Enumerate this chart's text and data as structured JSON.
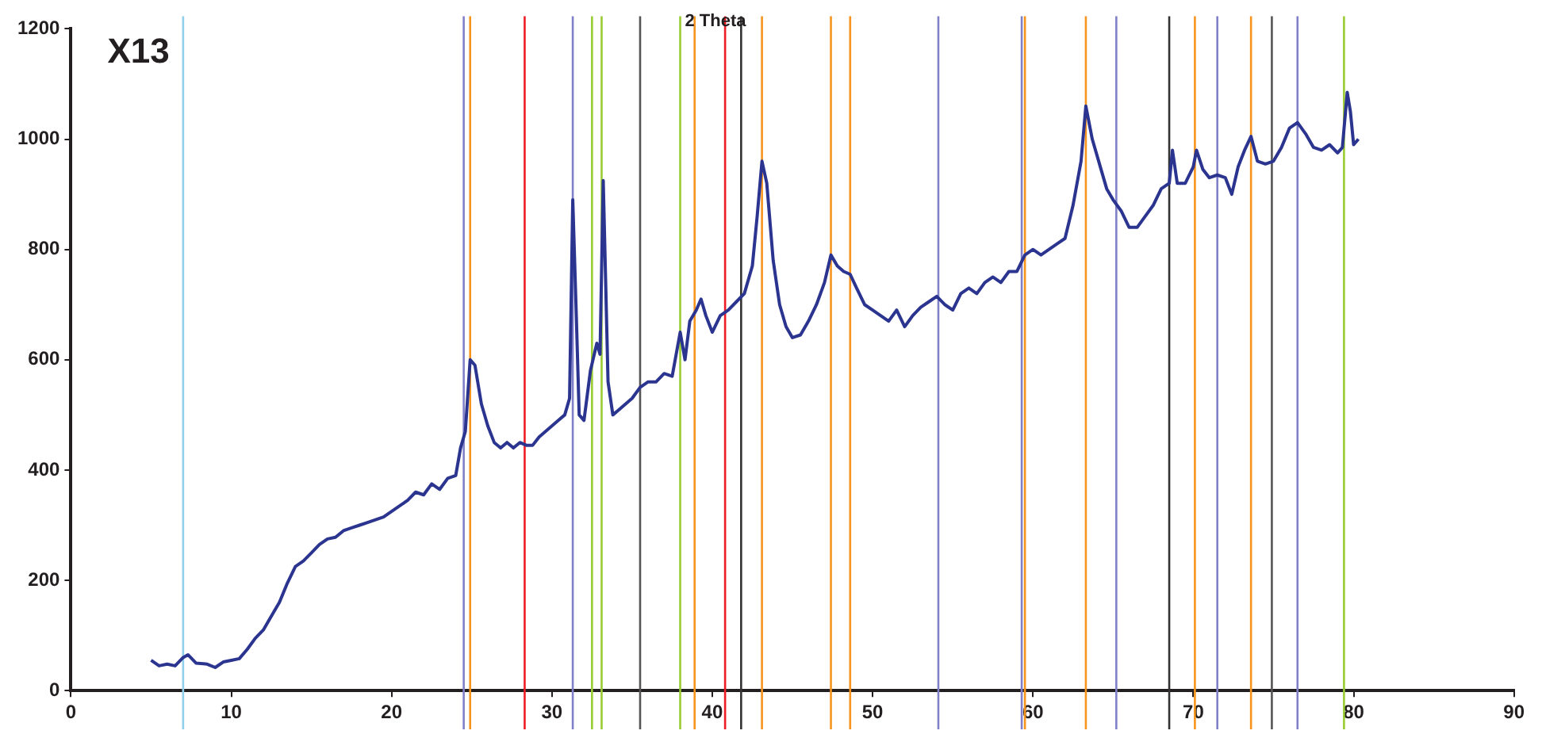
{
  "chart_data": {
    "type": "line",
    "title": "X13",
    "xlabel": "2 Theta",
    "xlim": [
      0,
      90
    ],
    "xticks": [
      0,
      10,
      20,
      30,
      40,
      50,
      60,
      70,
      80,
      90
    ],
    "ylim": [
      0,
      1200
    ],
    "yticks": [
      0,
      200,
      400,
      600,
      800,
      1000,
      1200
    ],
    "marker": "none",
    "line_style": "solid",
    "series": [
      {
        "color": "#2b3590",
        "x": [
          5,
          5.5,
          6,
          6.5,
          7,
          7.3,
          7.8,
          8.5,
          9,
          9.5,
          10,
          10.5,
          11,
          11.5,
          12,
          12.5,
          13,
          13.5,
          14,
          14.5,
          15,
          15.5,
          16,
          16.5,
          17,
          17.5,
          18,
          18.5,
          19,
          19.5,
          20,
          20.5,
          21,
          21.5,
          22,
          22.5,
          23,
          23.5,
          24,
          24.3,
          24.6,
          24.9,
          25.2,
          25.6,
          26,
          26.4,
          26.8,
          27.2,
          27.6,
          28,
          28.4,
          28.8,
          29.2,
          29.6,
          30,
          30.4,
          30.8,
          31.1,
          31.3,
          31.5,
          31.7,
          32,
          32.4,
          32.8,
          33,
          33.2,
          33.5,
          33.8,
          34.2,
          34.6,
          35,
          35.5,
          36,
          36.5,
          37,
          37.5,
          38,
          38.3,
          38.6,
          39,
          39.3,
          39.6,
          40,
          40.5,
          41,
          41.5,
          42,
          42.5,
          42.8,
          43.1,
          43.4,
          43.8,
          44.2,
          44.6,
          45,
          45.5,
          46,
          46.5,
          47,
          47.4,
          47.8,
          48.2,
          48.6,
          49,
          49.5,
          50,
          50.5,
          51,
          51.5,
          52,
          52.5,
          53,
          53.5,
          54,
          54.5,
          55,
          55.5,
          56,
          56.5,
          57,
          57.5,
          58,
          58.5,
          59,
          59.5,
          60,
          60.5,
          61,
          61.5,
          62,
          62.5,
          63,
          63.3,
          63.7,
          64.2,
          64.6,
          65,
          65.5,
          66,
          66.5,
          67,
          67.5,
          68,
          68.5,
          68.7,
          69,
          69.5,
          70,
          70.2,
          70.6,
          71,
          71.5,
          72,
          72.4,
          72.8,
          73.2,
          73.6,
          74,
          74.5,
          75,
          75.5,
          76,
          76.5,
          77,
          77.5,
          78,
          78.5,
          79,
          79.3,
          79.6,
          79.8,
          80,
          80.3
        ],
        "values": [
          55,
          45,
          48,
          45,
          60,
          65,
          50,
          48,
          42,
          52,
          55,
          58,
          75,
          95,
          110,
          135,
          160,
          195,
          225,
          235,
          250,
          265,
          275,
          278,
          290,
          295,
          300,
          305,
          310,
          315,
          325,
          335,
          345,
          360,
          355,
          375,
          365,
          385,
          390,
          440,
          470,
          600,
          590,
          520,
          480,
          450,
          440,
          450,
          440,
          450,
          445,
          445,
          460,
          470,
          480,
          490,
          500,
          530,
          890,
          700,
          500,
          490,
          580,
          630,
          610,
          925,
          560,
          500,
          510,
          520,
          530,
          550,
          560,
          560,
          575,
          570,
          650,
          600,
          670,
          690,
          710,
          680,
          650,
          680,
          690,
          705,
          720,
          770,
          860,
          960,
          920,
          780,
          700,
          660,
          640,
          645,
          670,
          700,
          740,
          790,
          770,
          760,
          755,
          730,
          700,
          690,
          680,
          670,
          690,
          660,
          680,
          695,
          705,
          715,
          700,
          690,
          720,
          730,
          720,
          740,
          750,
          740,
          760,
          760,
          790,
          800,
          790,
          800,
          810,
          820,
          880,
          960,
          1060,
          1000,
          950,
          910,
          890,
          870,
          840,
          840,
          860,
          880,
          910,
          920,
          980,
          920,
          920,
          950,
          980,
          945,
          930,
          935,
          930,
          900,
          950,
          980,
          1005,
          960,
          955,
          960,
          985,
          1020,
          1030,
          1010,
          985,
          980,
          990,
          975,
          985,
          1085,
          1050,
          990,
          1000
        ]
      }
    ],
    "ref_lines": [
      {
        "axis": "x",
        "value": 7.0,
        "color": "#8fd0ec"
      },
      {
        "axis": "x",
        "value": 24.5,
        "color": "#8080c8"
      },
      {
        "axis": "x",
        "value": 24.9,
        "color": "#f7941d"
      },
      {
        "axis": "x",
        "value": 28.3,
        "color": "#ee1c24"
      },
      {
        "axis": "x",
        "value": 31.3,
        "color": "#8080c8"
      },
      {
        "axis": "x",
        "value": 32.5,
        "color": "#99cc33"
      },
      {
        "axis": "x",
        "value": 33.1,
        "color": "#99cc33"
      },
      {
        "axis": "x",
        "value": 35.5,
        "color": "#555555"
      },
      {
        "axis": "x",
        "value": 38.0,
        "color": "#99cc33"
      },
      {
        "axis": "x",
        "value": 38.9,
        "color": "#f7941d"
      },
      {
        "axis": "x",
        "value": 40.8,
        "color": "#ee1c24"
      },
      {
        "axis": "x",
        "value": 41.8,
        "color": "#333333"
      },
      {
        "axis": "x",
        "value": 43.1,
        "color": "#f7941d"
      },
      {
        "axis": "x",
        "value": 47.4,
        "color": "#f7941d"
      },
      {
        "axis": "x",
        "value": 48.6,
        "color": "#f7941d"
      },
      {
        "axis": "x",
        "value": 54.1,
        "color": "#8080c8"
      },
      {
        "axis": "x",
        "value": 59.3,
        "color": "#8080c8"
      },
      {
        "axis": "x",
        "value": 59.5,
        "color": "#f7941d"
      },
      {
        "axis": "x",
        "value": 63.3,
        "color": "#f7941d"
      },
      {
        "axis": "x",
        "value": 65.2,
        "color": "#8080c8"
      },
      {
        "axis": "x",
        "value": 68.5,
        "color": "#333333"
      },
      {
        "axis": "x",
        "value": 70.1,
        "color": "#f7941d"
      },
      {
        "axis": "x",
        "value": 71.5,
        "color": "#8080c8"
      },
      {
        "axis": "x",
        "value": 73.6,
        "color": "#f7941d"
      },
      {
        "axis": "x",
        "value": 74.9,
        "color": "#555555"
      },
      {
        "axis": "x",
        "value": 76.5,
        "color": "#8080c8"
      },
      {
        "axis": "x",
        "value": 79.4,
        "color": "#99cc33"
      }
    ]
  }
}
